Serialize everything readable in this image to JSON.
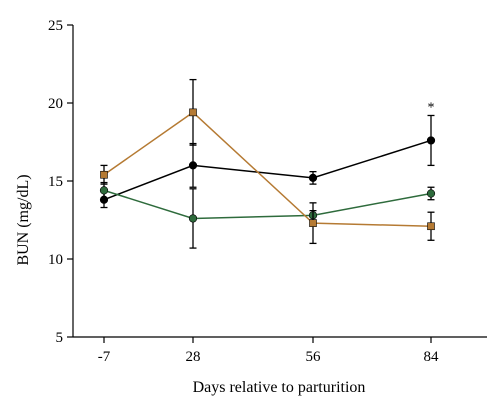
{
  "chart_data": {
    "type": "line",
    "xlabel": "Days relative to parturition",
    "ylabel": "BUN (mg/dL)",
    "categories": [
      "-7",
      "28",
      "56",
      "84"
    ],
    "ylim": [
      5,
      25
    ],
    "yticks": [
      5,
      10,
      15,
      20,
      25
    ],
    "grid": false,
    "series": [
      {
        "color": "#000000",
        "marker": "circle",
        "values": [
          13.8,
          16.0,
          15.2,
          17.6
        ],
        "error": [
          0.5,
          1.4,
          0.4,
          1.6
        ]
      },
      {
        "color": "#2e6b3c",
        "marker": "circle",
        "values": [
          14.4,
          12.6,
          12.8,
          14.2
        ],
        "error": [
          0.5,
          1.9,
          0.3,
          0.4
        ]
      },
      {
        "color": "#b57a33",
        "marker": "square",
        "values": [
          15.4,
          19.4,
          12.3,
          12.1
        ],
        "error": [
          0.6,
          2.1,
          1.3,
          0.9
        ]
      }
    ],
    "annotations": [
      {
        "text": "*",
        "category": "84"
      }
    ]
  }
}
